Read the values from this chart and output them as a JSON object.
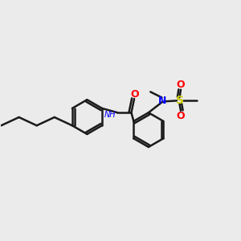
{
  "background_color": "#ebebeb",
  "bond_color": "#1a1a1a",
  "bond_width": 1.8,
  "figsize": [
    3.0,
    3.0
  ],
  "dpi": 100,
  "colors": {
    "C": "#1a1a1a",
    "N": "#0000ff",
    "O": "#ff0000",
    "S": "#cccc00",
    "H": "#1a1a1a"
  },
  "xlim": [
    0,
    10
  ],
  "ylim": [
    0,
    10
  ]
}
